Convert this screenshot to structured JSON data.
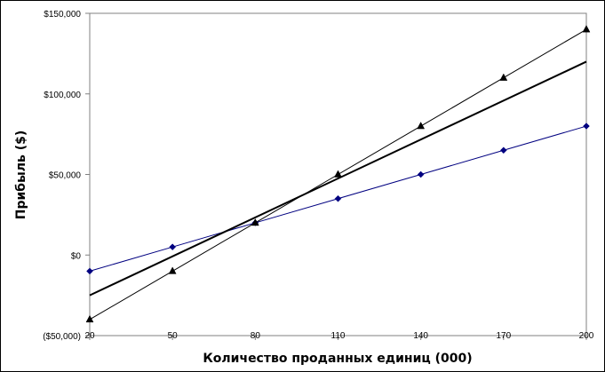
{
  "chart_data": {
    "type": "line",
    "title": "",
    "xlabel": "Количество проданных единиц (000)",
    "ylabel": "Прибыль ($)",
    "x_ticks": [
      20,
      50,
      80,
      110,
      140,
      170,
      200
    ],
    "y_ticks": [
      {
        "value": -50000,
        "label": "($50,000)"
      },
      {
        "value": 0,
        "label": "$0"
      },
      {
        "value": 50000,
        "label": "$50,000"
      },
      {
        "value": 100000,
        "label": "$100,000"
      },
      {
        "value": 150000,
        "label": "$150,000"
      }
    ],
    "xlim": [
      20,
      200
    ],
    "ylim": [
      -50000,
      150000
    ],
    "grid": false,
    "legend": "none",
    "series": [
      {
        "marker": "diamond",
        "color": "#000080",
        "points": [
          [
            20,
            -10000
          ],
          [
            50,
            5000
          ],
          [
            80,
            20000
          ],
          [
            110,
            35000
          ],
          [
            140,
            50000
          ],
          [
            170,
            65000
          ],
          [
            200,
            80000
          ]
        ]
      },
      {
        "marker": "triangle",
        "color": "#000000",
        "points": [
          [
            20,
            -40000
          ],
          [
            50,
            -10000
          ],
          [
            80,
            20000
          ],
          [
            110,
            50000
          ],
          [
            140,
            80000
          ],
          [
            170,
            110000
          ],
          [
            200,
            140000
          ]
        ]
      },
      {
        "marker": "none",
        "color": "#000000",
        "points": [
          [
            20,
            -25000
          ],
          [
            200,
            120000
          ]
        ]
      }
    ]
  }
}
